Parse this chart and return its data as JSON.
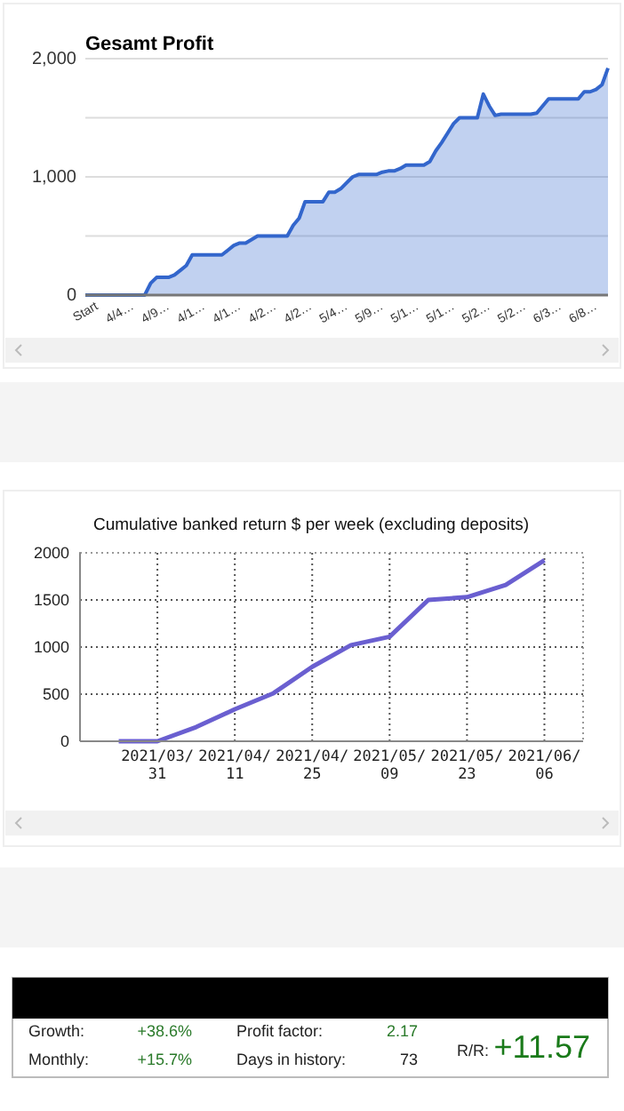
{
  "chart_data": [
    {
      "type": "area",
      "title": "Gesamt Profit",
      "color": "#3366cc",
      "grid": "y",
      "ylim": [
        0,
        2000
      ],
      "yticks": [
        0,
        {
          "value": 500,
          "label": null
        },
        {
          "value": 1000,
          "label": "1,000"
        },
        {
          "value": 1500,
          "label": null
        },
        {
          "value": 2000,
          "label": "2,000"
        }
      ],
      "categories": [
        "Start",
        null,
        null,
        null,
        null,
        null,
        "4/4…",
        null,
        null,
        null,
        null,
        null,
        "4/9…",
        null,
        null,
        null,
        null,
        null,
        "4/1…",
        null,
        null,
        null,
        null,
        null,
        "4/1…",
        null,
        null,
        null,
        null,
        null,
        "4/2…",
        null,
        null,
        null,
        null,
        null,
        "4/2…",
        null,
        null,
        null,
        null,
        null,
        "5/4…",
        null,
        null,
        null,
        null,
        null,
        "5/9…",
        null,
        null,
        null,
        null,
        null,
        "5/1…",
        null,
        null,
        null,
        null,
        null,
        "5/1…",
        null,
        null,
        null,
        null,
        null,
        "5/2…",
        null,
        null,
        null,
        null,
        null,
        "5/2…",
        null,
        null,
        null,
        null,
        null,
        "6/3…",
        null,
        null,
        null,
        null,
        null,
        "6/8…",
        null,
        null,
        null,
        null
      ],
      "values": [
        0,
        0,
        0,
        0,
        0,
        0,
        0,
        0,
        0,
        0,
        0,
        100,
        150,
        150,
        150,
        170,
        210,
        250,
        340,
        340,
        340,
        340,
        340,
        340,
        380,
        420,
        440,
        440,
        470,
        500,
        500,
        500,
        500,
        500,
        500,
        590,
        650,
        790,
        790,
        790,
        790,
        870,
        870,
        900,
        950,
        1000,
        1020,
        1020,
        1020,
        1020,
        1040,
        1050,
        1050,
        1070,
        1100,
        1100,
        1100,
        1100,
        1130,
        1220,
        1290,
        1370,
        1450,
        1500,
        1500,
        1500,
        1500,
        1700,
        1600,
        1520,
        1530,
        1530,
        1530,
        1530,
        1530,
        1530,
        1540,
        1600,
        1660,
        1660,
        1660,
        1660,
        1660,
        1660,
        1720,
        1720,
        1740,
        1780,
        1920
      ]
    },
    {
      "type": "line",
      "title": "Cumulative banked return $ per week (excluding deposits)",
      "color": "#6a5fd0",
      "grid": true,
      "ylim": [
        0,
        2000
      ],
      "yticks": [
        0,
        500,
        1000,
        1500,
        2000
      ],
      "categories": [
        null,
        "2021/03/31",
        null,
        "2021/04/11",
        null,
        "2021/04/25",
        null,
        "2021/05/09",
        null,
        "2021/05/23",
        null,
        "2021/06/06"
      ],
      "values": [
        0,
        0,
        150,
        340,
        510,
        790,
        1020,
        1110,
        1500,
        1530,
        1660,
        1920
      ]
    },
    {
      "type": "other",
      "annotations": [
        "Growth:",
        "+38.6%",
        "Profit factor:",
        "2.17",
        "Monthly:",
        "+15.7%",
        "Days in history:",
        "73",
        "R/R:",
        "+11.57"
      ]
    }
  ]
}
